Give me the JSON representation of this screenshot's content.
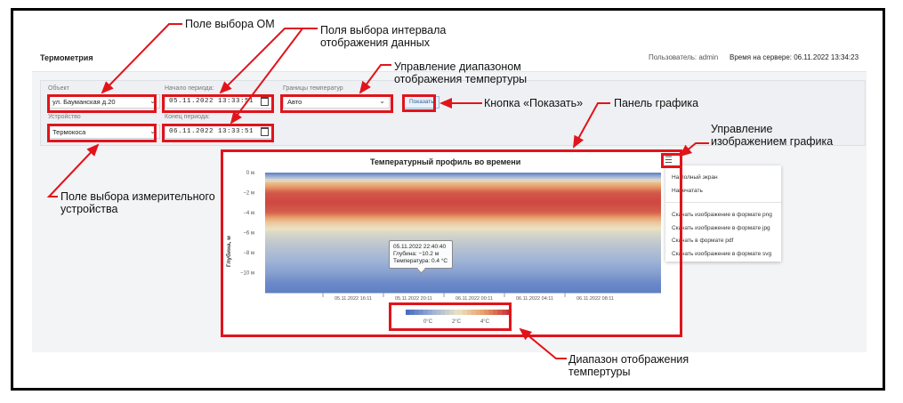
{
  "header": {
    "title": "Термометрия",
    "user": "Пользователь: admin",
    "server_time": "Время на сервере: 06.11.2022 13:34:23"
  },
  "filters": {
    "object_label": "Объект",
    "object_value": "ул. Бауманская д.20",
    "device_label": "Устройство",
    "device_value": "Термокоса",
    "start_label": "Начало периода:",
    "start_value": "05.11.2022 13:33:51",
    "end_label": "Конец периода:",
    "end_value": "06.11.2022 13:33:51",
    "bounds_label": "Границы температур",
    "bounds_value": "Авто",
    "show_button": "Показать"
  },
  "chart": {
    "title": "Температурный профиль во времени",
    "menu": {
      "items": [
        "На полный экран",
        "Напечатать",
        "Скачать изображение в формате png",
        "Скачать изображение в формате jpg",
        "Скачать в формате pdf",
        "Скачать изображение в формате svg"
      ]
    },
    "tooltip": {
      "time": "05.11.2022 22:40:40",
      "depth": "Глубина: −10.2 м",
      "temp": "Температура: 0.4 °C"
    }
  },
  "chart_data": {
    "type": "heatmap",
    "title": "Температурный профиль во времени",
    "xlabel": "",
    "ylabel": "Глубина, м",
    "yticks": [
      "0 м",
      "−2 м",
      "−4 м",
      "−6 м",
      "−8 м",
      "−10 м"
    ],
    "xticks": [
      "05.11.2022 16:11",
      "05.11.2022 20:11",
      "06.11.2022 00:11",
      "06.11.2022 04:11",
      "06.11.2022 08:11"
    ],
    "ylim": [
      -12,
      0
    ],
    "colorscale_ticks": [
      "0°C",
      "2°C",
      "4°C"
    ],
    "colors": [
      "#4a6fc0",
      "#9fb3d6",
      "#ece3c4",
      "#e8a06a",
      "#c8363a"
    ],
    "depth_profile": {
      "depths": [
        0,
        -0.5,
        -1,
        -2,
        -3,
        -4,
        -5,
        -6,
        -7,
        -8,
        -9,
        -10,
        -11,
        -12
      ],
      "temps": [
        0.2,
        1.5,
        3.2,
        4.6,
        4.8,
        4.5,
        3.0,
        2.2,
        1.8,
        1.5,
        1.2,
        0.9,
        0.5,
        0.3
      ]
    }
  },
  "annotations": {
    "om_select": "Поле выбора ОМ",
    "interval": "Поля выбора интервала\nотображения данных",
    "temp_range": "Управление диапазоном\nотображения темпертуры",
    "show_btn": "Кнопка «Показать»",
    "chart_panel": "Панель графика",
    "chart_control": "Управление\nизображением графика",
    "device_select": "Поле выбора измерительного\nустройства",
    "legend_range": "Диапазон отображения\nтемпертуры"
  }
}
